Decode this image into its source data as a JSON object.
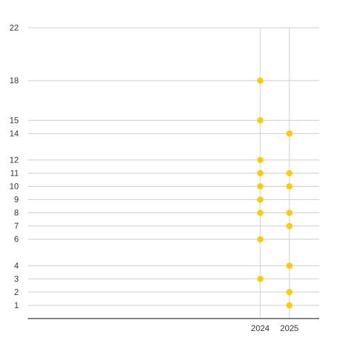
{
  "chart_data": {
    "type": "scatter",
    "title": "",
    "xlabel": "",
    "ylabel": "",
    "x_ticks": [
      2024,
      2025
    ],
    "y_ticks": [
      1,
      2,
      3,
      4,
      6,
      7,
      8,
      9,
      10,
      11,
      12,
      14,
      15,
      18,
      22
    ],
    "ylim": [
      0,
      22
    ],
    "grid": true,
    "legend": "none",
    "series": [
      {
        "points": [
          {
            "x": 2024,
            "y": 18
          },
          {
            "x": 2024,
            "y": 15
          },
          {
            "x": 2024,
            "y": 12
          },
          {
            "x": 2024,
            "y": 11
          },
          {
            "x": 2024,
            "y": 10
          },
          {
            "x": 2024,
            "y": 9
          },
          {
            "x": 2024,
            "y": 8
          },
          {
            "x": 2024,
            "y": 6
          },
          {
            "x": 2024,
            "y": 3
          },
          {
            "x": 2025,
            "y": 14
          },
          {
            "x": 2025,
            "y": 11
          },
          {
            "x": 2025,
            "y": 10
          },
          {
            "x": 2025,
            "y": 8
          },
          {
            "x": 2025,
            "y": 7
          },
          {
            "x": 2025,
            "y": 4
          },
          {
            "x": 2025,
            "y": 2
          },
          {
            "x": 2025,
            "y": 1
          }
        ]
      }
    ],
    "colors": {
      "point": "#ffcc00",
      "grid": "#cccccc",
      "axis": "#333333",
      "text": "#333333"
    }
  }
}
